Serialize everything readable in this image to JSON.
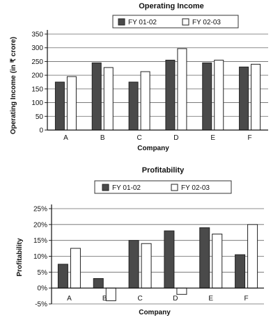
{
  "chart_data": [
    {
      "type": "bar",
      "title": "Operating Income",
      "xlabel": "Company",
      "ylabel": "Operating Income (in ₹ crore)",
      "categories": [
        "A",
        "B",
        "C",
        "D",
        "E",
        "F"
      ],
      "ylim": [
        0,
        350
      ],
      "yticks": [
        "0",
        "50",
        "100",
        "150",
        "200",
        "250",
        "300",
        "350"
      ],
      "ytick_values": [
        0,
        50,
        100,
        150,
        200,
        250,
        300,
        350
      ],
      "grid": true,
      "legend_position": "top",
      "series": [
        {
          "name": "FY 01-02",
          "color": "#4a4a4a",
          "values": [
            175,
            245,
            175,
            255,
            245,
            230
          ]
        },
        {
          "name": "FY 02-03",
          "color": "#ffffff",
          "values": [
            195,
            228,
            213,
            297,
            255,
            240
          ]
        }
      ]
    },
    {
      "type": "bar",
      "title": "Profitability",
      "xlabel": "Company",
      "ylabel": "Profitability",
      "categories": [
        "A",
        "B",
        "C",
        "D",
        "E",
        "F"
      ],
      "ylim": [
        -5,
        25
      ],
      "yticks": [
        "-5%",
        "0%",
        "5%",
        "10%",
        "15%",
        "20%",
        "25%"
      ],
      "ytick_values": [
        -5,
        0,
        5,
        10,
        15,
        20,
        25
      ],
      "grid": true,
      "legend_position": "top",
      "series": [
        {
          "name": "FY 01-02",
          "color": "#4a4a4a",
          "values": [
            7.5,
            3,
            15,
            18,
            19,
            10.5
          ]
        },
        {
          "name": "FY 02-03",
          "color": "#ffffff",
          "values": [
            12.5,
            -4,
            14,
            -2,
            17,
            20
          ]
        }
      ]
    }
  ]
}
